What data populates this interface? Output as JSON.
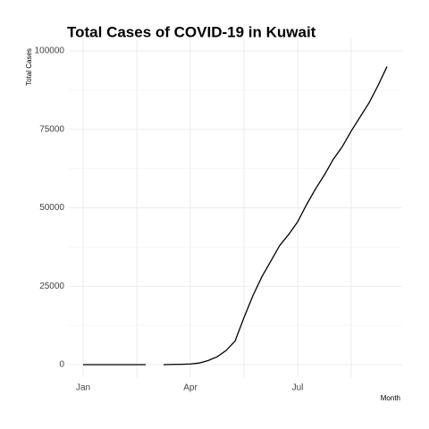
{
  "chart_data": {
    "type": "line",
    "title": "Total Cases of COVID-19 in Kuwait",
    "x_label": "Month",
    "y_label": "Total Cases",
    "categories": [
      "Jan",
      null,
      null,
      null,
      null,
      null,
      null,
      null,
      null,
      null,
      null,
      null,
      "Apr",
      null,
      null,
      null,
      null,
      null,
      null,
      null,
      null,
      null,
      null,
      null,
      "Jul",
      null,
      null,
      null,
      null,
      null,
      null,
      null,
      null,
      null,
      null
    ],
    "series": [
      {
        "name": "Total Cases",
        "color": "#000000",
        "values": [
          0,
          0,
          0,
          0,
          0,
          0,
          0,
          0,
          null,
          0,
          50,
          100,
          200,
          500,
          1300,
          2500,
          4500,
          7500,
          15000,
          22000,
          28000,
          33000,
          38000,
          41500,
          45500,
          51000,
          56000,
          60500,
          65500,
          69500,
          74500,
          79000,
          83500,
          89000,
          95000
        ]
      }
    ],
    "ylim": [
      -4000,
      104000
    ],
    "yticks": [
      0,
      25000,
      50000,
      75000,
      100000
    ],
    "grid": true
  }
}
